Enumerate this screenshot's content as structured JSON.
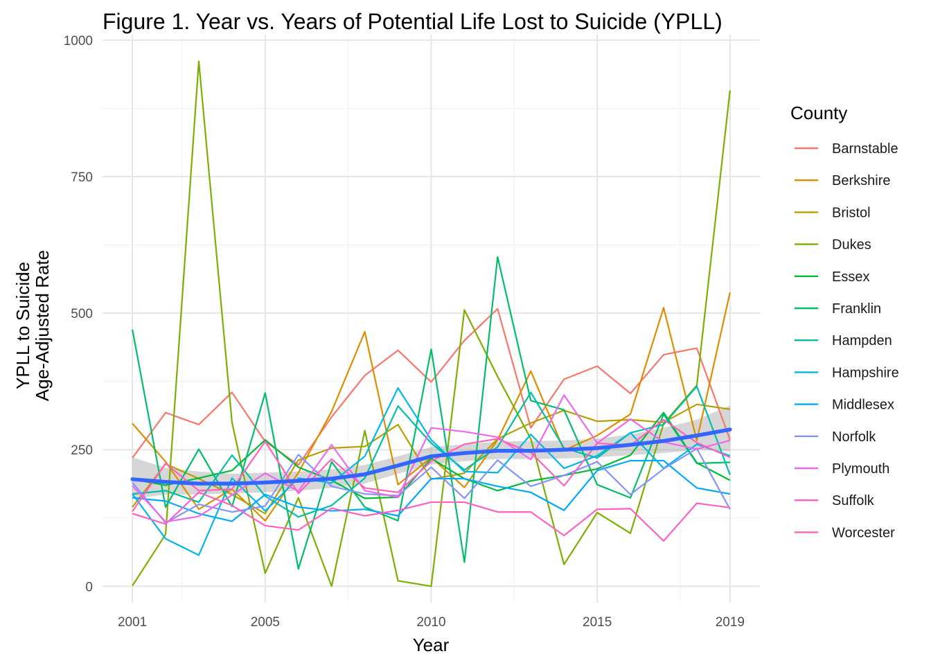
{
  "chart_data": {
    "type": "line",
    "title": "Figure 1. Year vs. Years of Potential Life Lost to Suicide (YPLL)",
    "xlabel": "Year",
    "ylabel_lines": [
      "YPLL to Suicide",
      "Age-Adjusted Rate"
    ],
    "xlim": [
      2000.1,
      2019.9
    ],
    "ylim": [
      -30,
      1010
    ],
    "x_ticks": [
      2001,
      2005,
      2010,
      2015,
      2019
    ],
    "x_minor": [
      2002.5,
      2007.5,
      2012.5,
      2017.5
    ],
    "y_ticks": [
      0,
      250,
      500,
      750,
      1000
    ],
    "y_minor": [
      125,
      375,
      625,
      875
    ],
    "grid": true,
    "legend_title": "County",
    "legend_position": "right",
    "x": [
      2001,
      2002,
      2003,
      2004,
      2005,
      2006,
      2007,
      2008,
      2009,
      2010,
      2011,
      2012,
      2013,
      2014,
      2015,
      2016,
      2017,
      2018,
      2019
    ],
    "series": [
      {
        "name": "Barnstable",
        "color": "#F8766D",
        "values": [
          235,
          318,
          296,
          355,
          265,
          222,
          310,
          386,
          432,
          374,
          450,
          508,
          290,
          379,
          403,
          353,
          424,
          436,
          268
        ]
      },
      {
        "name": "Berkshire",
        "color": "#DE8C00",
        "values": [
          298,
          228,
          141,
          178,
          120,
          208,
          320,
          466,
          186,
          236,
          181,
          268,
          394,
          249,
          276,
          315,
          510,
          267,
          538
        ]
      },
      {
        "name": "Bristol",
        "color": "#B79F00",
        "values": [
          145,
          224,
          197,
          168,
          133,
          231,
          253,
          256,
          296,
          196,
          207,
          270,
          299,
          322,
          302,
          305,
          300,
          333,
          324
        ]
      },
      {
        "name": "Dukes",
        "color": "#7CAE00",
        "values": [
          1,
          95,
          961,
          300,
          24,
          162,
          0,
          285,
          10,
          0,
          506,
          384,
          270,
          40,
          135,
          97,
          298,
          368,
          908
        ]
      },
      {
        "name": "Essex",
        "color": "#00BA38",
        "values": [
          196,
          185,
          198,
          212,
          268,
          218,
          194,
          161,
          163,
          234,
          197,
          175,
          193,
          203,
          215,
          240,
          318,
          226,
          194
        ]
      },
      {
        "name": "Franklin",
        "color": "#00BE67",
        "values": [
          470,
          145,
          251,
          146,
          354,
          32,
          228,
          145,
          120,
          434,
          44,
          603,
          340,
          323,
          186,
          162,
          315,
          225,
          227
        ]
      },
      {
        "name": "Hampden",
        "color": "#00BFA5",
        "values": [
          169,
          175,
          154,
          240,
          165,
          127,
          148,
          198,
          330,
          262,
          213,
          255,
          355,
          253,
          235,
          281,
          296,
          366,
          204
        ]
      },
      {
        "name": "Hampshire",
        "color": "#00B8E7",
        "values": [
          169,
          87,
          57,
          198,
          138,
          198,
          189,
          238,
          363,
          268,
          210,
          208,
          278,
          216,
          239,
          281,
          216,
          260,
          239
        ]
      },
      {
        "name": "Middlesex",
        "color": "#00A9FF",
        "values": [
          162,
          156,
          133,
          119,
          168,
          145,
          138,
          141,
          129,
          197,
          197,
          183,
          172,
          139,
          212,
          230,
          230,
          180,
          169
        ]
      },
      {
        "name": "Norfolk",
        "color": "#8494FF",
        "values": [
          190,
          116,
          150,
          136,
          147,
          241,
          183,
          169,
          166,
          218,
          161,
          231,
          183,
          203,
          228,
          168,
          215,
          252,
          141
        ]
      },
      {
        "name": "Plymouth",
        "color": "#ED68ED",
        "values": [
          184,
          118,
          128,
          167,
          207,
          174,
          259,
          175,
          163,
          290,
          283,
          273,
          232,
          350,
          262,
          306,
          264,
          251,
          267
        ]
      },
      {
        "name": "Suffolk",
        "color": "#FF61C3",
        "values": [
          133,
          114,
          172,
          148,
          111,
          103,
          143,
          129,
          139,
          154,
          154,
          136,
          136,
          93,
          141,
          142,
          83,
          152,
          144
        ]
      },
      {
        "name": "Worcester",
        "color": "#FF62BC",
        "values": [
          137,
          225,
          175,
          178,
          265,
          170,
          233,
          180,
          172,
          229,
          260,
          270,
          245,
          184,
          262,
          258,
          305,
          263,
          236
        ]
      }
    ],
    "smooth": {
      "color": "#3366FF",
      "band_color": "#999999",
      "x": [
        2001,
        2002,
        2003,
        2004,
        2005,
        2006,
        2007,
        2008,
        2009,
        2010,
        2011,
        2012,
        2013,
        2014,
        2015,
        2016,
        2017,
        2018,
        2019
      ],
      "y": [
        196,
        191,
        188,
        188,
        190,
        193,
        197,
        205,
        221,
        238,
        244,
        248,
        248,
        250,
        253,
        259,
        266,
        276,
        287
      ],
      "ymin": [
        160,
        168,
        168,
        170,
        172,
        175,
        180,
        188,
        206,
        223,
        229,
        233,
        233,
        234,
        236,
        240,
        244,
        250,
        247
      ],
      "ymax": [
        236,
        217,
        210,
        206,
        208,
        210,
        214,
        222,
        238,
        255,
        260,
        265,
        266,
        267,
        270,
        278,
        290,
        305,
        331
      ]
    }
  }
}
